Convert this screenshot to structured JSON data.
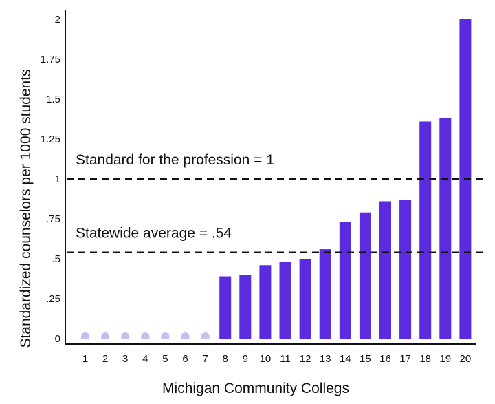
{
  "chart_data": {
    "type": "bar",
    "xlabel": "Michigan Community Collegs",
    "ylabel": "Standardized counselors per 1000 students",
    "ylim": [
      0,
      2
    ],
    "yticks": [
      {
        "value": 0,
        "label": "0"
      },
      {
        "value": 0.25,
        "label": ".25"
      },
      {
        "value": 0.5,
        "label": ".5"
      },
      {
        "value": 0.75,
        "label": ".75"
      },
      {
        "value": 1,
        "label": "1"
      },
      {
        "value": 1.25,
        "label": "1.25"
      },
      {
        "value": 1.5,
        "label": "1.5"
      },
      {
        "value": 1.75,
        "label": "1.75"
      },
      {
        "value": 2,
        "label": "2"
      }
    ],
    "categories": [
      "1",
      "2",
      "3",
      "4",
      "5",
      "6",
      "7",
      "8",
      "9",
      "10",
      "11",
      "12",
      "13",
      "14",
      "15",
      "16",
      "17",
      "18",
      "19",
      "20"
    ],
    "values": [
      0,
      0,
      0,
      0,
      0,
      0,
      0,
      0.39,
      0.4,
      0.46,
      0.48,
      0.5,
      0.56,
      0.73,
      0.79,
      0.86,
      0.87,
      1.36,
      1.38,
      2.0
    ],
    "grid": false,
    "bar_color": "#5b2be0",
    "zero_marker_color": "#c9bdf0",
    "reference_lines": [
      {
        "value": 1,
        "label": "Standard for the profession = 1"
      },
      {
        "value": 0.54,
        "label": "Statewide average = .54"
      }
    ]
  }
}
